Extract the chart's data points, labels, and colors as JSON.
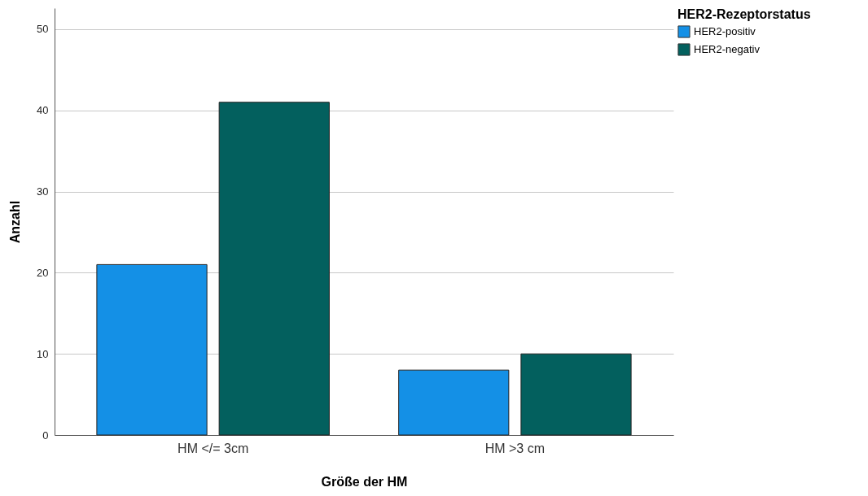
{
  "chart_data": {
    "type": "bar",
    "xlabel": "Größe der HM",
    "ylabel": "Anzahl",
    "legend_title": "HER2-Rezeptorstatus",
    "categories": [
      "HM </= 3cm",
      "HM >3 cm"
    ],
    "series": [
      {
        "name": "HER2-positiv",
        "color": "#1490e6",
        "values": [
          21,
          8
        ]
      },
      {
        "name": "HER2-negativ",
        "color": "#03605e",
        "values": [
          41,
          10
        ]
      }
    ],
    "ylim": [
      0,
      52.6
    ],
    "yticks": [
      0,
      10,
      20,
      30,
      40,
      50
    ],
    "grid": "y",
    "legend": "top right"
  }
}
